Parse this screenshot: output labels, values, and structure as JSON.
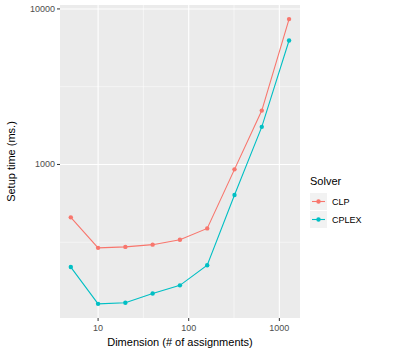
{
  "chart_data": {
    "type": "line",
    "x_label": "Dimension (# of assignments)",
    "y_label": "Setup time (ms.)",
    "legend_title": "Solver",
    "legend": "right",
    "log": true,
    "grid": true,
    "x": [
      5,
      10,
      20,
      40,
      80,
      160,
      320,
      640,
      1280
    ],
    "series": [
      {
        "name": "CLP",
        "color": "#F8766D",
        "marker": "circle",
        "values": [
          457,
          291,
          295,
          305,
          328,
          388,
          930,
          2220,
          8600
        ]
      },
      {
        "name": "CPLEX",
        "color": "#00BFC4",
        "marker": "circle",
        "values": [
          219,
          127,
          129,
          148,
          167,
          225,
          637,
          1745,
          6270
        ]
      }
    ],
    "xlim": [
      3.8,
      1690
    ],
    "ylim": [
      103,
      10600
    ],
    "xticks": [
      10,
      100,
      1000
    ],
    "yticks": [
      1000,
      10000
    ]
  }
}
